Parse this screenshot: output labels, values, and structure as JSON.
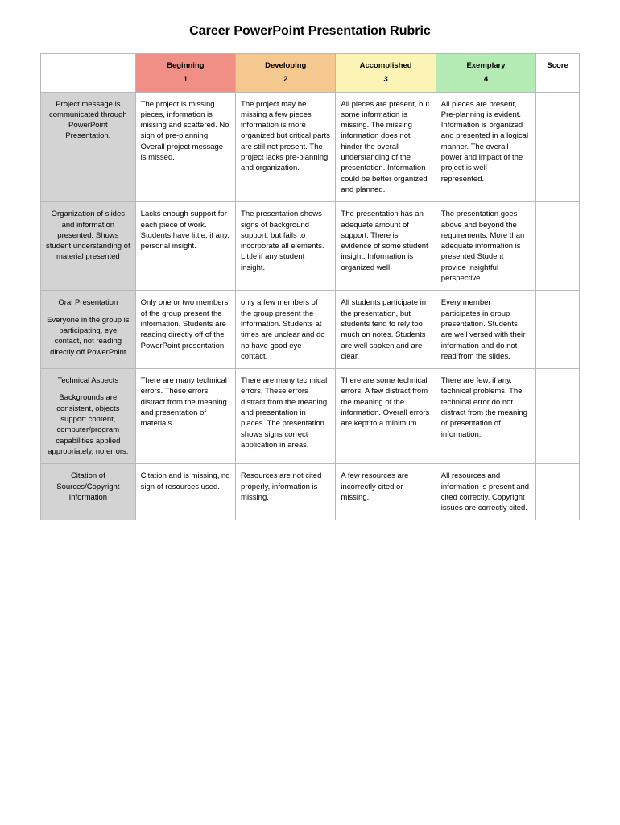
{
  "title": "Career PowerPoint Presentation Rubric",
  "headers": {
    "beginning_label": "Beginning",
    "beginning_num": "1",
    "developing_label": "Developing",
    "developing_num": "2",
    "accomplished_label": "Accomplished",
    "accomplished_num": "3",
    "exemplary_label": "Exemplary",
    "exemplary_num": "4",
    "score_label": "Score"
  },
  "rows": [
    {
      "criteria": "Project message is communicated through PowerPoint Presentation.",
      "c1": "The project is missing pieces, information is missing and scattered. No sign of pre-planning. Overall project message is missed.",
      "c2": "The project may be missing a few pieces information is more organized but critical parts are still not present. The project lacks pre-planning and organization.",
      "c3": "All pieces are present, but some information is missing. The missing information does not hinder the overall understanding of the presentation. Information could be better organized and planned.",
      "c4": "All pieces are present, Pre-planning is evident. Information is organized and presented in a logical manner. The overall power and impact of the project is well represented."
    },
    {
      "criteria": "Organization of slides and information presented. Shows student understanding of material presented",
      "c1": "Lacks enough support for each piece of work. Students have little, if any, personal insight.",
      "c2": "The presentation shows signs of background support, but fails to incorporate all elements. Little if any student insight.",
      "c3": "The presentation has an adequate amount of support. There is evidence of some student insight. Information is organized well.",
      "c4": "The presentation goes above and beyond the requirements. More than adequate information is presented Student provide insightful perspective."
    },
    {
      "criteria_title": "Oral Presentation",
      "criteria_body": "Everyone in the group is participating, eye contact, not reading directly off PowerPoint",
      "c1": "Only one or two members of the group present the information. Students are reading directly off of the PowerPoint presentation.",
      "c2": "only a few members of the group present the information. Students at times are unclear and do no have good eye contact.",
      "c3": "All students participate in the presentation, but students tend to rely too much on notes. Students are well spoken and are clear.",
      "c4": "Every member participates in group presentation. Students are well versed with their information and do not read from the slides."
    },
    {
      "criteria_title": "Technical Aspects",
      "criteria_body": "Backgrounds are consistent, objects support content, computer/program capabilities applied appropriately, no errors.",
      "c1": "There are many technical errors. These errors distract from the meaning and presentation of materials.",
      "c2": "There are many technical errors. These errors distract from the meaning and presentation in places. The presentation shows signs correct application in areas.",
      "c3": "There are some technical errors. A few distract from the meaning of the information. Overall errors are kept to a minimum.",
      "c4": "There are few, if any, technical problems. The technical error do not distract from the meaning or presentation of information."
    },
    {
      "criteria": "Citation of Sources/Copyright Information",
      "c1": "Citation and is missing, no sign of resources used.",
      "c2": "Resources are not cited properly, information is missing.",
      "c3": "A few resources are incorrectly cited or missing.",
      "c4": "All resources and information is present and cited correctly. Copyright issues are correctly cited."
    }
  ],
  "colors": {
    "beginning": "#ef8f85",
    "developing": "#f5c88f",
    "accomplished": "#fbf4b4",
    "exemplary": "#b4eab4",
    "criteria_bg": "#d3d3d3",
    "border": "#b8b8b8"
  }
}
